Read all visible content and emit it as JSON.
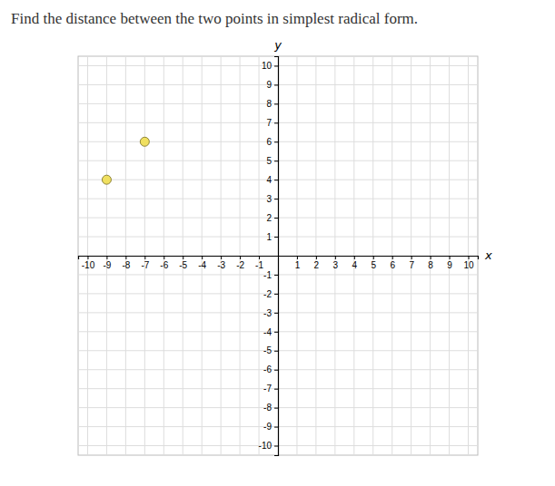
{
  "chart_data": {
    "type": "scatter",
    "title": "Find the distance between the two points in simplest radical form.",
    "xlabel": "x",
    "ylabel": "y",
    "x": [
      -7,
      -9
    ],
    "values": [
      6,
      4
    ],
    "color": "#f0e060",
    "xlim": [
      -10.5,
      10.5
    ],
    "ylim": [
      -10.5,
      10.5
    ],
    "xticks": [
      -10,
      -9,
      -8,
      -7,
      -6,
      -5,
      -4,
      -3,
      -2,
      -1,
      1,
      2,
      3,
      4,
      5,
      6,
      7,
      8,
      9,
      10
    ],
    "yticks": [
      -10,
      -9,
      -8,
      -7,
      -6,
      -5,
      -4,
      -3,
      -2,
      -1,
      1,
      2,
      3,
      4,
      5,
      6,
      7,
      8,
      9,
      10
    ],
    "grid": true
  }
}
